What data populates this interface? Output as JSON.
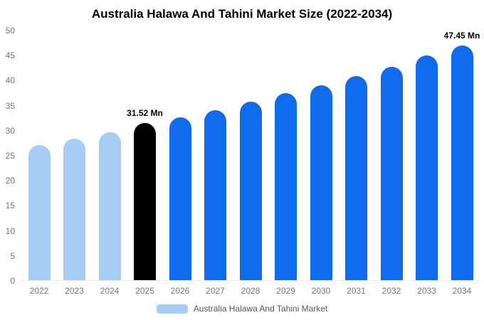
{
  "chart_data": {
    "type": "bar",
    "title": "Australia Halawa And Tahini Market Size (2022-2034)",
    "categories": [
      "2022",
      "2023",
      "2024",
      "2025",
      "2026",
      "2027",
      "2028",
      "2029",
      "2030",
      "2031",
      "2032",
      "2033",
      "2034"
    ],
    "values": [
      27.0,
      28.4,
      29.7,
      31.52,
      32.6,
      34.1,
      35.7,
      37.4,
      39.1,
      40.9,
      42.8,
      45.0,
      47.45
    ],
    "unit": "Mn",
    "xlabel": "",
    "ylabel": "",
    "ylim": [
      0,
      50
    ],
    "ytick_step": 5,
    "grid": false,
    "legend": {
      "label": "Australia Halawa And Tahini Market",
      "position": "bottom"
    },
    "colors": {
      "light": "#a7cdf5",
      "primary": "#0d6bec",
      "highlight": "#000000"
    },
    "bar_color_roles": [
      "light",
      "light",
      "light",
      "highlight",
      "primary",
      "primary",
      "primary",
      "primary",
      "primary",
      "primary",
      "primary",
      "primary",
      "primary"
    ],
    "annotations": [
      {
        "category": "2025",
        "text": "31.52 Mn"
      },
      {
        "category": "2034",
        "text": "47.45 Mn"
      }
    ]
  }
}
